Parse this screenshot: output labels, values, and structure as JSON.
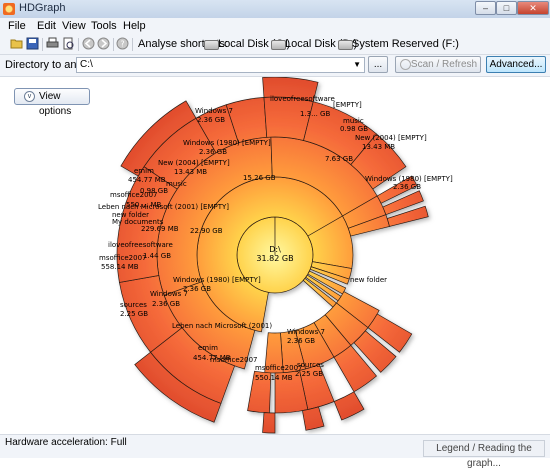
{
  "window": {
    "title": "HDGraph",
    "minimize": "–",
    "maximize": "□",
    "close": "✕"
  },
  "menu": [
    "File",
    "Edit",
    "View",
    "Tools",
    "Help"
  ],
  "toolbar": {
    "shortcuts_label": "Analyse shortcuts:",
    "drives": [
      "Local Disk (C:)",
      "Local Disk (D:)",
      "System Reserved (F:)"
    ],
    "icons": [
      "open-folder-icon",
      "save-icon",
      "print-icon",
      "print-preview-icon",
      "back-icon",
      "forward-icon",
      "help-icon"
    ]
  },
  "directory": {
    "label": "Directory to analyze :",
    "value": "C:\\",
    "browse_label": "...",
    "scan_label": "Scan / Refresh",
    "advanced_label": "Advanced..."
  },
  "view_options_label": "View options",
  "status": {
    "hw": "Hardware acceleration: Full",
    "legend": "Legend / Reading the graph..."
  },
  "graph": {
    "center": {
      "name": "D:\\",
      "size": "31.82 GB"
    },
    "labels": [
      {
        "name": "Windows 7",
        "size": "2.36 GB"
      },
      {
        "name": "iloveofreesoftware",
        "size": "1.3... GB"
      },
      {
        "name": "music",
        "size": "0.98 GB"
      },
      {
        "name": "New (2004) [EMPTY]",
        "size": "13.43 MB"
      },
      {
        "name": "[EMPTY]",
        "size": ""
      },
      {
        "name": "Windows (1980) [EMPTY]",
        "size": "2.36 GB"
      },
      {
        "name": "7.63 GB",
        "size": ""
      },
      {
        "name": "Windows (1980) [EMPTY]",
        "size": "2.36 GB"
      },
      {
        "name": "15.26 GB",
        "size": ""
      },
      {
        "name": "New (2004) [EMPTY]",
        "size": "13.43 MB"
      },
      {
        "name": "emim",
        "size": "454.77 MB"
      },
      {
        "name": "msoffice2007",
        "size": "550.... MB"
      },
      {
        "name": "music",
        "size": "0.98 GB"
      },
      {
        "name": "Leben nach Microsoft (2001) [EMPTY]",
        "size": ""
      },
      {
        "name": "new folder",
        "size": "229.69 MB"
      },
      {
        "name": "My documents",
        "size": ""
      },
      {
        "name": "22.90 GB",
        "size": ""
      },
      {
        "name": "iloveofreesoftware",
        "size": "1.44 GB"
      },
      {
        "name": "msoffice2007",
        "size": "558.14 MB"
      },
      {
        "name": "Windows (1980) [EMPTY]",
        "size": "2.36 GB"
      },
      {
        "name": "Windows 7",
        "size": "2.36 GB"
      },
      {
        "name": "sources",
        "size": "2.25 GB"
      },
      {
        "name": "Leben nach Microsoft (2001)",
        "size": ""
      },
      {
        "name": "Windows 7",
        "size": "2.36 GB"
      },
      {
        "name": "sources",
        "size": "2.25 GB"
      },
      {
        "name": "msoffice2007",
        "size": "550.14 MB"
      },
      {
        "name": "emim",
        "size": "454.77 MB"
      },
      {
        "name": "msoffice2007",
        "size": ""
      },
      {
        "name": "new folder",
        "size": ""
      }
    ]
  }
}
